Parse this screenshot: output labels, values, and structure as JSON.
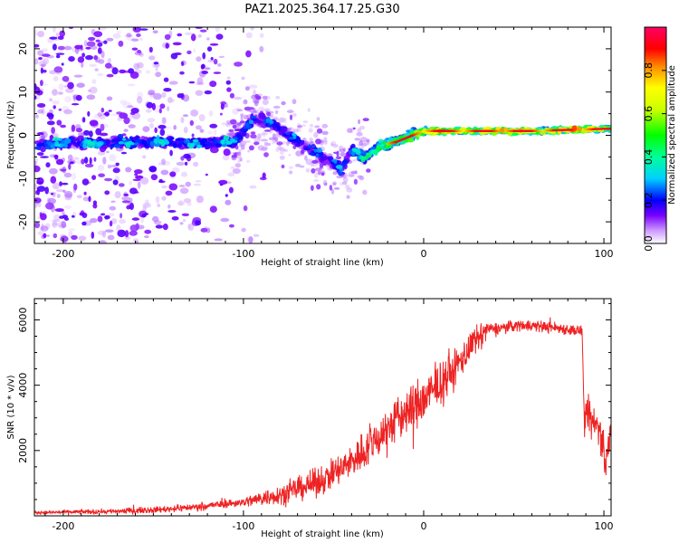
{
  "title": "PAZ1.2025.364.17.25.G30",
  "chart_data": [
    {
      "type": "heatmap",
      "name": "spectrogram",
      "xlabel": "Height of straight line (km)",
      "ylabel": "Frequency (Hz)",
      "xlim": [
        -216,
        104
      ],
      "ylim": [
        -25,
        25
      ],
      "xticks": [
        -200,
        -100,
        0,
        100
      ],
      "yticks": [
        -20,
        -10,
        0,
        10,
        20
      ],
      "colorbar": {
        "label": "Normalized spectral amplitude",
        "range": [
          0,
          1
        ],
        "ticks": [
          "0.0",
          "0.2",
          "0.4",
          "0.6",
          "0.8"
        ],
        "tick_values": [
          0.0,
          0.2,
          0.4,
          0.6,
          0.8
        ],
        "colormap": [
          "#ffffff",
          "#7700ff",
          "#0000ff",
          "#00d0ff",
          "#00ff44",
          "#ffff00",
          "#ff8800",
          "#ff0000",
          "#ff0066"
        ]
      },
      "ridge": [
        {
          "x": -205,
          "f": -2.0
        },
        {
          "x": -160,
          "f": -1.5
        },
        {
          "x": -130,
          "f": -1.8
        },
        {
          "x": -105,
          "f": -1.5
        },
        {
          "x": -95,
          "f": 3.5
        },
        {
          "x": -85,
          "f": 3.0
        },
        {
          "x": -75,
          "f": 0.0
        },
        {
          "x": -60,
          "f": -4.0
        },
        {
          "x": -45,
          "f": -8.0
        },
        {
          "x": -40,
          "f": -3.0
        },
        {
          "x": -33,
          "f": -5.5
        },
        {
          "x": -25,
          "f": -2.5
        },
        {
          "x": -15,
          "f": -1.5
        },
        {
          "x": 0,
          "f": 1.0
        },
        {
          "x": 20,
          "f": 1.0
        },
        {
          "x": 60,
          "f": 1.0
        },
        {
          "x": 100,
          "f": 1.5
        }
      ]
    },
    {
      "type": "line",
      "name": "snr",
      "xlabel": "Height of straight line (km)",
      "ylabel": "SNR (10 * v/v)",
      "xlim": [
        -216,
        104
      ],
      "ylim": [
        0,
        6650
      ],
      "xticks": [
        -200,
        -100,
        0,
        100
      ],
      "yticks": [
        2000,
        4000,
        6000
      ],
      "color": "#ee2222",
      "trend": [
        {
          "x": -216,
          "y": 100
        },
        {
          "x": -180,
          "y": 130
        },
        {
          "x": -150,
          "y": 180
        },
        {
          "x": -130,
          "y": 260
        },
        {
          "x": -100,
          "y": 420
        },
        {
          "x": -80,
          "y": 650
        },
        {
          "x": -60,
          "y": 1000
        },
        {
          "x": -45,
          "y": 1450
        },
        {
          "x": -30,
          "y": 2150
        },
        {
          "x": -15,
          "y": 2950
        },
        {
          "x": 0,
          "y": 3550
        },
        {
          "x": 15,
          "y": 4350
        },
        {
          "x": 25,
          "y": 5100
        },
        {
          "x": 35,
          "y": 5700
        },
        {
          "x": 55,
          "y": 5850
        },
        {
          "x": 75,
          "y": 5750
        },
        {
          "x": 88,
          "y": 5650
        },
        {
          "x": 89,
          "y": 3000
        },
        {
          "x": 98,
          "y": 2700
        },
        {
          "x": 101,
          "y": 1500
        },
        {
          "x": 103,
          "y": 2400
        }
      ]
    }
  ]
}
